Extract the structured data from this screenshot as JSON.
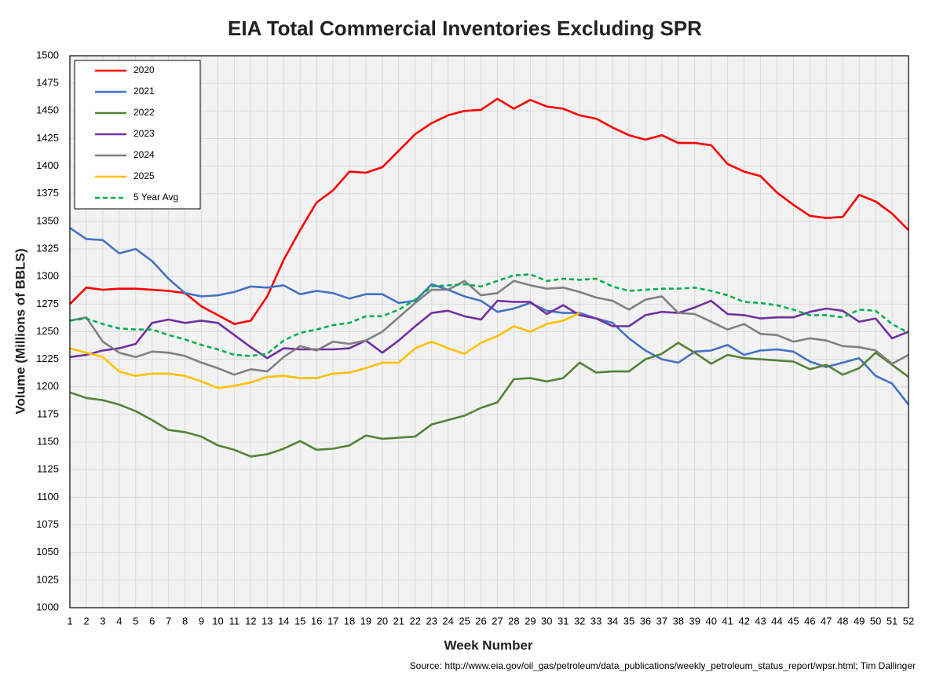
{
  "chart_data": {
    "type": "line",
    "title": "EIA Total Commercial Inventories Excluding SPR",
    "x_label": "Week Number",
    "y_label": "Volume (Millions of BBLS)",
    "source": "Source: http://www.eia.gov/oil_gas/petroleum/data_publications/weekly_petroleum_status_report/wpsr.html; Tim Dallinger",
    "x": [
      1,
      2,
      3,
      4,
      5,
      6,
      7,
      8,
      9,
      10,
      11,
      12,
      13,
      14,
      15,
      16,
      17,
      18,
      19,
      20,
      21,
      22,
      23,
      24,
      25,
      26,
      27,
      28,
      29,
      30,
      31,
      32,
      33,
      34,
      35,
      36,
      37,
      38,
      39,
      40,
      41,
      42,
      43,
      44,
      45,
      46,
      47,
      48,
      49,
      50,
      51,
      52
    ],
    "xlim": [
      1,
      52
    ],
    "xticks": [
      1,
      2,
      3,
      4,
      5,
      6,
      7,
      8,
      9,
      10,
      11,
      12,
      13,
      14,
      15,
      16,
      17,
      18,
      19,
      20,
      21,
      22,
      23,
      24,
      25,
      26,
      27,
      28,
      29,
      30,
      31,
      32,
      33,
      34,
      35,
      36,
      37,
      38,
      39,
      40,
      41,
      42,
      43,
      44,
      45,
      46,
      47,
      48,
      49,
      50,
      51,
      52
    ],
    "ylim": [
      1000,
      1500
    ],
    "yticks": [
      1000,
      1025,
      1050,
      1075,
      1100,
      1125,
      1150,
      1175,
      1200,
      1225,
      1250,
      1275,
      1300,
      1325,
      1350,
      1375,
      1400,
      1425,
      1450,
      1475,
      1500
    ],
    "grid": true,
    "legend": "upper left",
    "series": [
      {
        "name": "2020",
        "color": "#ff0000",
        "values": [
          1275,
          1290,
          1288,
          1289,
          1289,
          1288,
          1287,
          1285,
          1273,
          1265,
          1257,
          1260,
          1282,
          1315,
          1342,
          1367,
          1378,
          1395,
          1394,
          1399,
          1414,
          1429,
          1439,
          1446,
          1450,
          1451,
          1461,
          1452,
          1460,
          1454,
          1452,
          1446,
          1443,
          1435,
          1428,
          1424,
          1428,
          1421,
          1421,
          1419,
          1402,
          1395,
          1391,
          1376,
          1365,
          1355,
          1353,
          1354,
          1374,
          1368,
          1357,
          1342
        ]
      },
      {
        "name": "2021",
        "color": "#4472c4",
        "values": [
          1344,
          1334,
          1333,
          1321,
          1325,
          1314,
          1298,
          1285,
          1282,
          1283,
          1286,
          1291,
          1290,
          1292,
          1284,
          1287,
          1285,
          1280,
          1284,
          1284,
          1276,
          1278,
          1293,
          1288,
          1282,
          1278,
          1268,
          1271,
          1276,
          1269,
          1267,
          1267,
          1262,
          1258,
          1244,
          1233,
          1225,
          1222,
          1232,
          1233,
          1238,
          1229,
          1233,
          1234,
          1232,
          1223,
          1218,
          1222,
          1226,
          1210,
          1203,
          1184
        ]
      },
      {
        "name": "2022",
        "color": "#548235",
        "values": [
          1195,
          1190,
          1188,
          1184,
          1178,
          1170,
          1161,
          1159,
          1155,
          1147,
          1143,
          1137,
          1139,
          1144,
          1151,
          1143,
          1144,
          1147,
          1156,
          1153,
          1154,
          1155,
          1166,
          1170,
          1174,
          1181,
          1186,
          1207,
          1208,
          1205,
          1208,
          1222,
          1213,
          1214,
          1214,
          1225,
          1230,
          1240,
          1231,
          1221,
          1229,
          1226,
          1225,
          1224,
          1223,
          1216,
          1220,
          1211,
          1217,
          1231,
          1220,
          1209
        ]
      },
      {
        "name": "2023",
        "color": "#7030a0",
        "values": [
          1227,
          1229,
          1233,
          1235,
          1239,
          1258,
          1261,
          1258,
          1260,
          1258,
          1247,
          1236,
          1226,
          1235,
          1234,
          1234,
          1234,
          1235,
          1242,
          1231,
          1242,
          1255,
          1267,
          1269,
          1264,
          1261,
          1278,
          1277,
          1277,
          1266,
          1274,
          1265,
          1262,
          1255,
          1255,
          1265,
          1268,
          1267,
          1272,
          1278,
          1266,
          1265,
          1262,
          1263,
          1263,
          1268,
          1271,
          1269,
          1259,
          1262,
          1244,
          1250
        ]
      },
      {
        "name": "2024",
        "color": "#808080",
        "values": [
          1260,
          1263,
          1241,
          1231,
          1227,
          1232,
          1231,
          1228,
          1222,
          1217,
          1211,
          1216,
          1214,
          1227,
          1237,
          1233,
          1241,
          1239,
          1242,
          1250,
          1263,
          1276,
          1288,
          1288,
          1296,
          1283,
          1285,
          1296,
          1292,
          1289,
          1290,
          1286,
          1281,
          1278,
          1270,
          1279,
          1282,
          1267,
          1266,
          1259,
          1252,
          1257,
          1248,
          1247,
          1241,
          1244,
          1242,
          1237,
          1236,
          1233,
          1221,
          1229
        ]
      },
      {
        "name": "2025",
        "color": "#ffc000",
        "values": [
          1235,
          1231,
          1227,
          1214,
          1210,
          1212,
          1212,
          1210,
          1205,
          1199,
          1201,
          1204,
          1209,
          1210,
          1208,
          1208,
          1212,
          1213,
          1217,
          1222,
          1222,
          1235,
          1241,
          1235,
          1230,
          1240,
          1246,
          1255,
          1250,
          1257,
          1260,
          1267,
          null,
          null,
          null,
          null,
          null,
          null,
          null,
          null,
          null,
          null,
          null,
          null,
          null,
          null,
          null,
          null,
          null,
          null,
          null,
          null
        ]
      },
      {
        "name": "5 Year Avg",
        "color": "#00b050",
        "dashed": true,
        "values": [
          1260,
          1262,
          1257,
          1253,
          1252,
          1252,
          1247,
          1243,
          1238,
          1234,
          1229,
          1228,
          1230,
          1242,
          1249,
          1252,
          1256,
          1258,
          1264,
          1264,
          1270,
          1279,
          1291,
          1292,
          1293,
          1291,
          1296,
          1301,
          1302,
          1296,
          1298,
          1297,
          1298,
          1291,
          1287,
          1288,
          1289,
          1289,
          1290,
          1287,
          1283,
          1277,
          1276,
          1274,
          1270,
          1265,
          1265,
          1263,
          1270,
          1269,
          1257,
          1249
        ]
      }
    ]
  }
}
